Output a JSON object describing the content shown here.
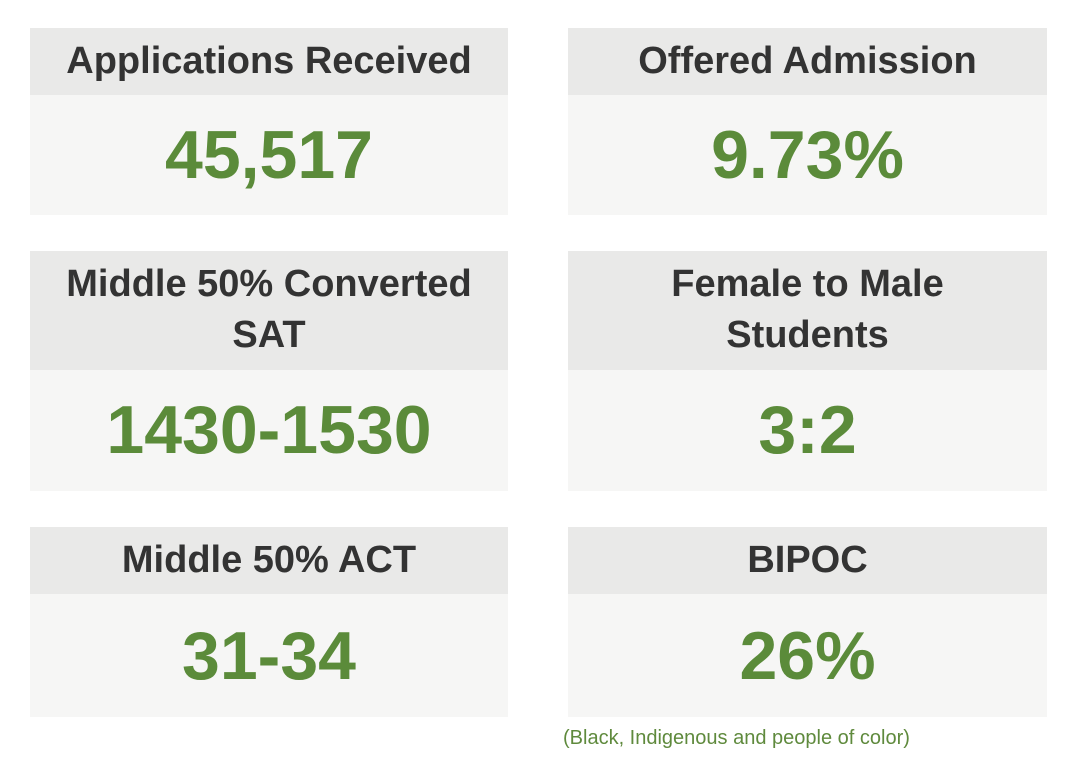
{
  "colors": {
    "page_bg": "#ffffff",
    "card_header_bg": "#e9e9e8",
    "card_body_bg": "#f6f6f5",
    "title_text": "#333333",
    "value_green": "#5b8b3a",
    "footnote_green": "#5f8a3d"
  },
  "stats": {
    "applications_received": {
      "title": "Applications Received",
      "value": "45,517"
    },
    "offered_admission": {
      "title": "Offered Admission",
      "value": "9.73%"
    },
    "converted_sat": {
      "title": "Middle 50% Converted SAT",
      "value": "1430-1530"
    },
    "female_to_male": {
      "title": "Female to Male Students",
      "value": "3:2"
    },
    "act": {
      "title": "Middle 50% ACT",
      "value": "31-34"
    },
    "bipoc": {
      "title": "BIPOC",
      "value": "26%",
      "footnote": "(Black, Indigenous and people of color)"
    }
  },
  "chart_data": {
    "type": "table",
    "categories": [
      "Applications Received",
      "Offered Admission",
      "Middle 50% Converted SAT",
      "Female to Male Students",
      "Middle 50% ACT",
      "BIPOC"
    ],
    "values": [
      "45,517",
      "9.73%",
      "1430-1530",
      "3:2",
      "31-34",
      "26%"
    ],
    "annotations": [
      "(Black, Indigenous and people of color)"
    ],
    "layout": "2-column by 3-row grid of stat tiles, gray header with dark bold title, light body with large green bold value, green footnote under BIPOC tile"
  }
}
